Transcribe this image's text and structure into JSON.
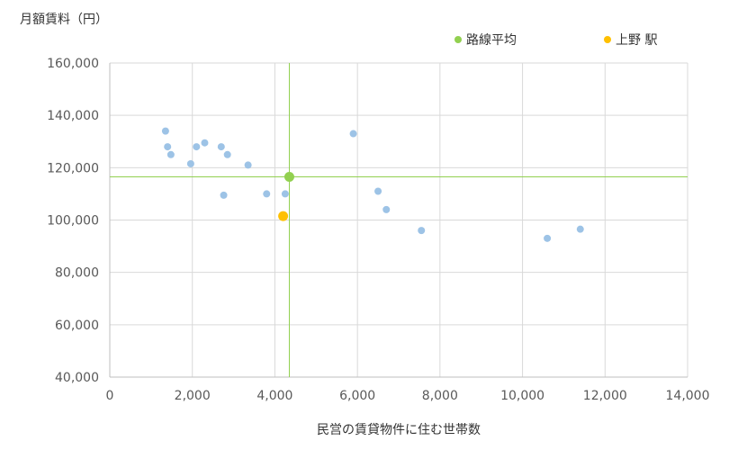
{
  "chart_data": {
    "type": "scatter",
    "ylabel": "月額賃料（円）",
    "xlabel": "民営の賃貸物件に住む世帯数",
    "xlim": [
      0,
      14000
    ],
    "ylim": [
      40000,
      160000
    ],
    "x_ticks": [
      0,
      2000,
      4000,
      6000,
      8000,
      10000,
      12000,
      14000
    ],
    "y_ticks": [
      40000,
      60000,
      80000,
      100000,
      120000,
      140000,
      160000
    ],
    "x_tick_labels": [
      "0",
      "2,000",
      "4,000",
      "6,000",
      "8,000",
      "10,000",
      "12,000",
      "14,000"
    ],
    "y_tick_labels": [
      "40,000",
      "60,000",
      "80,000",
      "100,000",
      "120,000",
      "140,000",
      "160,000"
    ],
    "grid": true,
    "legend_position": "top-right",
    "colors": {
      "stations": "#9dc3e6",
      "average": "#92d050",
      "highlight": "#ffc000",
      "grid": "#d9d9d9",
      "axis": "#bfbfbf"
    },
    "series": [
      {
        "role": "stations",
        "x": [
          1350,
          1400,
          1480,
          1960,
          2100,
          2300,
          2700,
          2760,
          2850,
          3350,
          3800,
          4250,
          5900,
          6500,
          6700,
          7550,
          10600,
          11400
        ],
        "y": [
          134000,
          128000,
          125000,
          121500,
          128000,
          129500,
          128000,
          109500,
          125000,
          121000,
          110000,
          110000,
          133000,
          111000,
          104000,
          96000,
          93000,
          96500
        ]
      },
      {
        "role": "average",
        "name": "路線平均",
        "x": [
          4350
        ],
        "y": [
          116500
        ]
      },
      {
        "role": "highlight",
        "name": "上野 駅",
        "x": [
          4200
        ],
        "y": [
          101500
        ]
      }
    ],
    "reference_lines": {
      "x": 4350,
      "y": 116500
    }
  }
}
